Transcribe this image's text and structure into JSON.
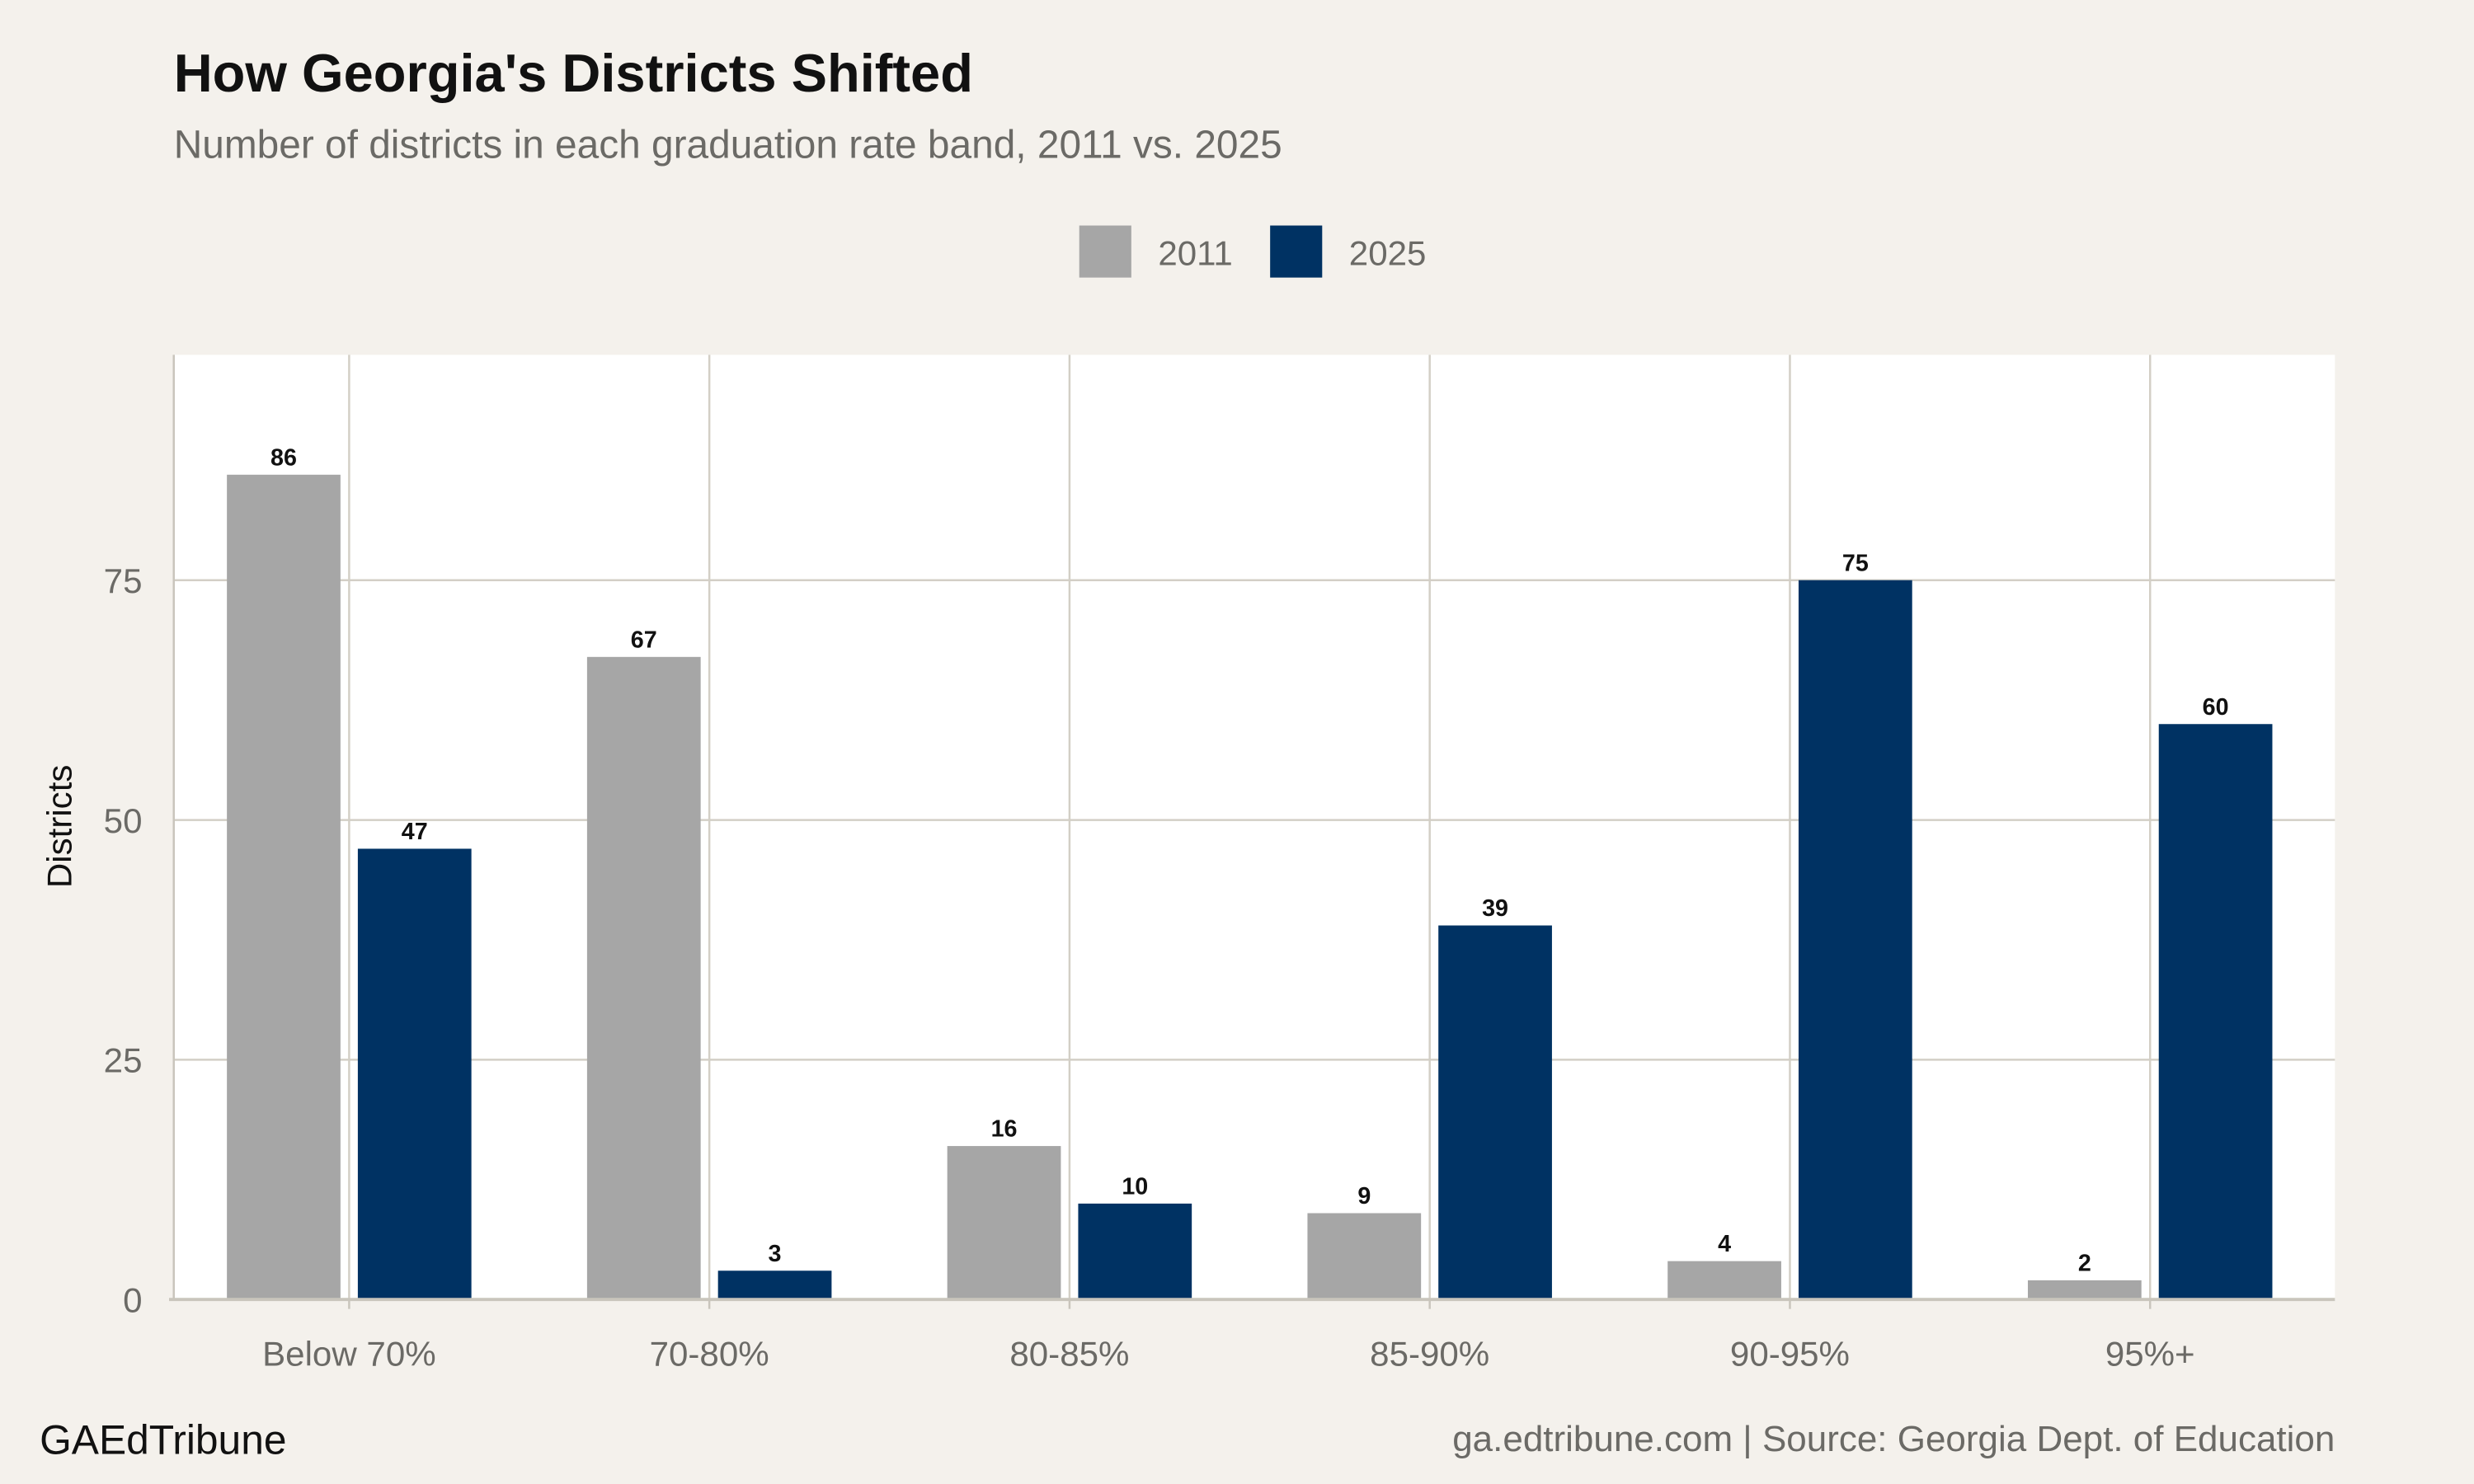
{
  "chart_data": {
    "type": "bar",
    "title": "How Georgia's Districts Shifted",
    "subtitle": "Number of districts in each graduation rate band, 2011 vs. 2025",
    "xlabel": "",
    "ylabel": "Districts",
    "categories": [
      "Below 70%",
      "70-80%",
      "80-85%",
      "85-90%",
      "90-95%",
      "95%+"
    ],
    "series": [
      {
        "name": "2011",
        "color": "#a6a6a6",
        "values": [
          86,
          67,
          16,
          9,
          4,
          2
        ]
      },
      {
        "name": "2025",
        "color": "#003263",
        "values": [
          47,
          3,
          10,
          39,
          75,
          60
        ]
      }
    ],
    "ylim": [
      0,
      98.5
    ],
    "yticks": [
      0,
      25,
      50,
      75
    ],
    "grid": true,
    "legend_position": "top-center",
    "data_labels": true
  },
  "footer": {
    "brand": "GAEdTribune",
    "source": "ga.edtribune.com | Source: Georgia Dept. of Education"
  }
}
